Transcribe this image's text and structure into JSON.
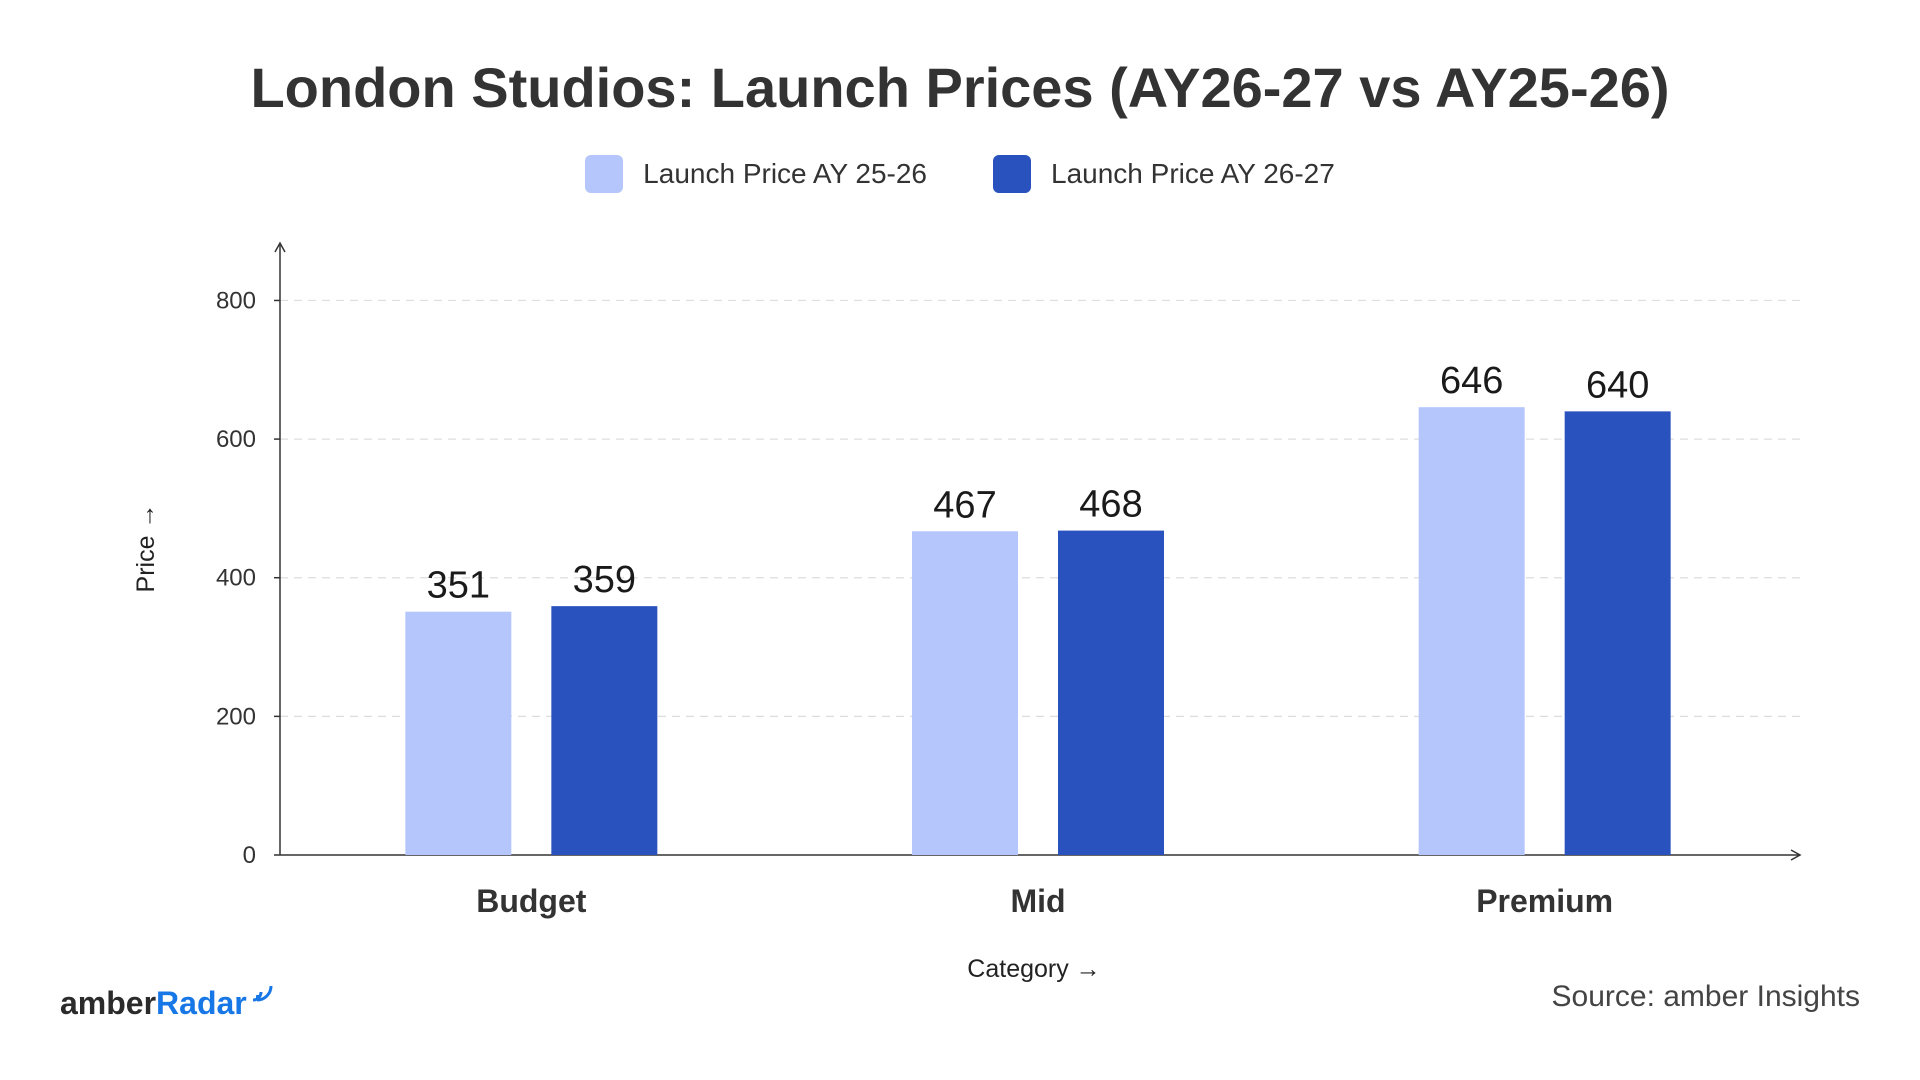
{
  "colors": {
    "series1": "#b4c6fc",
    "series2": "#2a52be",
    "axis": "#333333",
    "grid": "#dddddd",
    "brand_accent": "#1877e6"
  },
  "brand": {
    "part1": "amber",
    "part2": "Radar",
    "icon": "radar-wave-icon"
  },
  "source": "Source: amber Insights",
  "chart_data": {
    "type": "bar",
    "title": "London Studios: Launch Prices (AY26-27 vs AY25-26)",
    "xlabel": "Category →",
    "ylabel": "Price →",
    "categories": [
      "Budget",
      "Mid",
      "Premium"
    ],
    "series": [
      {
        "name": "Launch Price AY 25-26",
        "values": [
          351,
          467,
          646
        ]
      },
      {
        "name": "Launch Price AY 26-27",
        "values": [
          359,
          468,
          640
        ]
      }
    ],
    "ylim": [
      0,
      880
    ],
    "yticks": [
      0,
      200,
      400,
      600,
      800
    ],
    "grid": true,
    "legend": "top-center"
  }
}
